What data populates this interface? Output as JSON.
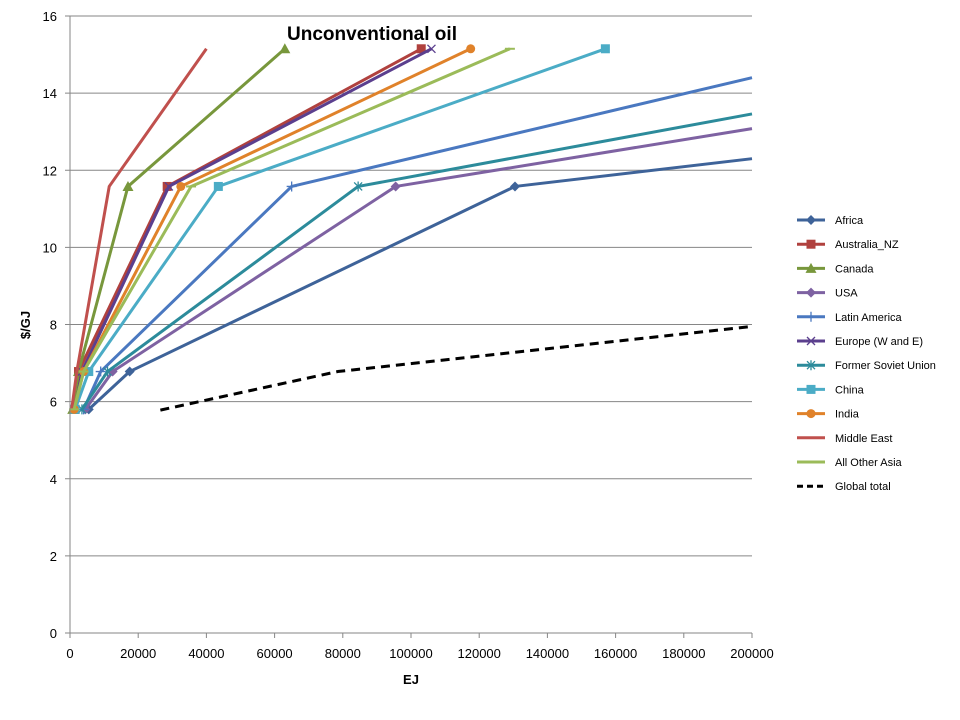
{
  "chart_data": {
    "type": "line",
    "title": "Unconventional oil",
    "xlabel": "EJ",
    "ylabel": "$/GJ",
    "xlim": [
      0,
      200000
    ],
    "ylim": [
      0,
      16
    ],
    "x_ticks": [
      "0",
      "20000",
      "40000",
      "60000",
      "80000",
      "100000",
      "120000",
      "140000",
      "160000",
      "180000",
      "200000"
    ],
    "y_ticks": [
      "0",
      "2",
      "4",
      "6",
      "8",
      "10",
      "12",
      "14",
      "16"
    ],
    "grid": "horizontal",
    "legend_position": "right",
    "series": [
      {
        "name": "Africa",
        "color": "#3e6399",
        "marker": "diamond",
        "x": [
          5500,
          17500,
          130500,
          200000
        ],
        "y": [
          5.8,
          6.78,
          11.58,
          12.3
        ]
      },
      {
        "name": "Australia_NZ",
        "color": "#b0413e",
        "marker": "square",
        "x": [
          1500,
          2500,
          28500,
          103000
        ],
        "y": [
          5.8,
          6.78,
          11.58,
          15.15
        ]
      },
      {
        "name": "Canada",
        "color": "#78973c",
        "marker": "triangle",
        "x": [
          800,
          2500,
          17000,
          63000
        ],
        "y": [
          5.8,
          6.78,
          11.58,
          15.15
        ]
      },
      {
        "name": "USA",
        "color": "#7e62a2",
        "marker": "diamond",
        "x": [
          4500,
          12500,
          95500,
          200000
        ],
        "y": [
          5.8,
          6.78,
          11.58,
          13.08
        ]
      },
      {
        "name": "Latin America",
        "color": "#4a78c0",
        "marker": "plus",
        "x": [
          4000,
          9000,
          65000,
          200000
        ],
        "y": [
          5.8,
          6.78,
          11.58,
          14.4
        ]
      },
      {
        "name": "Europe (W and E)",
        "color": "#5b3f8e",
        "marker": "x",
        "x": [
          1500,
          3500,
          29000,
          106000
        ],
        "y": [
          5.8,
          6.78,
          11.58,
          15.15
        ]
      },
      {
        "name": "Former Soviet Union",
        "color": "#2c8b9b",
        "marker": "star",
        "x": [
          3500,
          11000,
          84500,
          200000
        ],
        "y": [
          5.8,
          6.78,
          11.58,
          13.46
        ]
      },
      {
        "name": "China",
        "color": "#4bacc6",
        "marker": "square",
        "x": [
          1500,
          5500,
          43500,
          157000
        ],
        "y": [
          5.8,
          6.78,
          11.58,
          15.15
        ]
      },
      {
        "name": "India",
        "color": "#e0822a",
        "marker": "circle",
        "x": [
          1200,
          4000,
          32500,
          117500
        ],
        "y": [
          5.8,
          6.78,
          11.58,
          15.15
        ]
      },
      {
        "name": "Middle East",
        "color": "#c0504d",
        "marker": "none",
        "x": [
          500,
          2000,
          11500,
          40000
        ],
        "y": [
          5.8,
          6.78,
          11.58,
          15.15
        ]
      },
      {
        "name": "All Other Asia",
        "color": "#9bbb59",
        "marker": "dash",
        "x": [
          1200,
          4000,
          35500,
          129000
        ],
        "y": [
          5.8,
          6.78,
          11.58,
          15.15
        ]
      },
      {
        "name": "Global total",
        "color": "#000000",
        "marker": "none",
        "dashed": true,
        "x": [
          26500,
          78500,
          200000
        ],
        "y": [
          5.78,
          6.78,
          7.95
        ]
      }
    ]
  }
}
